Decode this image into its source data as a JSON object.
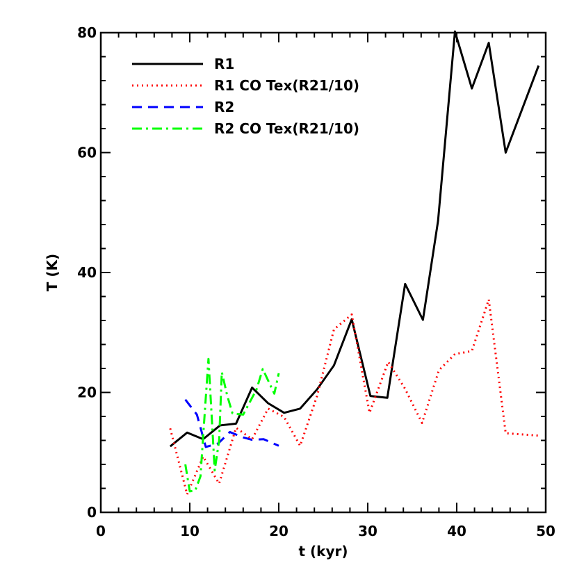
{
  "chart_data": {
    "type": "line",
    "xlabel": "t (kyr)",
    "ylabel": "T (K)",
    "xlim": [
      0,
      50
    ],
    "ylim": [
      0,
      80
    ],
    "xticks": [
      0,
      10,
      20,
      30,
      40,
      50
    ],
    "yticks": [
      0,
      20,
      40,
      60,
      80
    ],
    "xminorticks": [
      2,
      4,
      6,
      8,
      12,
      14,
      16,
      18,
      22,
      24,
      26,
      28,
      32,
      34,
      36,
      38,
      42,
      44,
      46,
      48
    ],
    "yminorticks": [
      4,
      8,
      12,
      16,
      24,
      28,
      32,
      36,
      44,
      48,
      52,
      56,
      64,
      68,
      72,
      76
    ],
    "legend": "upper left",
    "series": [
      {
        "name": "R1",
        "color": "#000000",
        "dash": "solid",
        "x": [
          7.8,
          9.7,
          11.5,
          13.4,
          15.2,
          17,
          18.8,
          20.6,
          22.4,
          24.3,
          26.2,
          28.2,
          30.3,
          32.2,
          34.2,
          36.2,
          37.9,
          39.8,
          41.7,
          43.6,
          45.5,
          49.2
        ],
        "values": [
          11,
          13.3,
          12.2,
          14.5,
          14.8,
          20.8,
          18.2,
          16.6,
          17.3,
          20.5,
          24.5,
          32.2,
          19.4,
          19.1,
          38.1,
          32.1,
          48.6,
          80.2,
          70.7,
          78.3,
          60,
          74.5
        ]
      },
      {
        "name": "R1 CO Tex(R21/10)",
        "color": "#ff0000",
        "dash": "dotted",
        "x": [
          7.8,
          9.7,
          11.5,
          13.3,
          15.2,
          17,
          18.8,
          20.6,
          22.4,
          24.3,
          26.2,
          28.2,
          30.2,
          32.3,
          34.2,
          36.1,
          38,
          39.8,
          41.7,
          43.6,
          45.5,
          49.2
        ],
        "values": [
          14,
          3,
          9.3,
          4.8,
          14.1,
          12.2,
          17.3,
          15.9,
          11.1,
          19.4,
          30.5,
          33,
          16.6,
          25.1,
          20.6,
          14.9,
          23.7,
          26.4,
          26.9,
          35.5,
          13.2,
          12.8
        ]
      },
      {
        "name": "R2",
        "color": "#0000ff",
        "dash": "dashed",
        "x": [
          9.5,
          10.8,
          11.8,
          13.2,
          14.5,
          16,
          17,
          18.3,
          20
        ],
        "values": [
          18.8,
          16.3,
          10.9,
          11.5,
          13.4,
          12.5,
          12.1,
          12.2,
          11.1
        ]
      },
      {
        "name": "R2 CO Tex(R21/10)",
        "color": "#00ff00",
        "dash": "dashdot",
        "x": [
          9.5,
          10,
          10.6,
          11.2,
          11.7,
          12.1,
          12.8,
          13.3,
          13.6,
          14.2,
          14.8,
          16,
          17.5,
          18.2,
          18.8,
          19.5,
          20
        ],
        "values": [
          8,
          3.5,
          3.6,
          6,
          17,
          25.6,
          7,
          12,
          23.4,
          19.5,
          16.5,
          16.3,
          20.5,
          23.9,
          22,
          19.8,
          23.2
        ]
      }
    ]
  }
}
